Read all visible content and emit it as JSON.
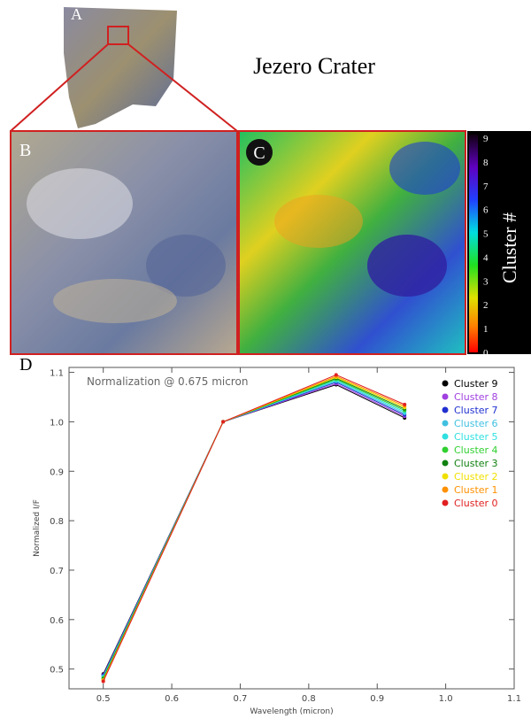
{
  "figure": {
    "title": "Jezero Crater",
    "panels": [
      "A",
      "B",
      "C",
      "D"
    ],
    "colorbar": {
      "label": "Cluster #",
      "ticks": [
        0,
        1,
        2,
        3,
        4,
        5,
        6,
        7,
        8,
        9
      ]
    }
  },
  "chart_data": {
    "type": "line",
    "annotation": "Normalization @ 0.675 micron",
    "x_label": "Wavelength (micron)",
    "y_label": "Normalized I/F",
    "x": [
      0.5,
      0.675,
      0.84,
      0.94
    ],
    "xlim": [
      0.45,
      1.1
    ],
    "ylim": [
      0.46,
      1.11
    ],
    "xticks": [
      0.5,
      0.6,
      0.7,
      0.8,
      0.9,
      {
        "value": 1,
        "label": "1.0"
      },
      1.1
    ],
    "yticks": [
      0.5,
      0.6,
      0.7,
      0.8,
      0.9,
      {
        "value": 1,
        "label": "1.0"
      },
      1.1
    ],
    "legend": "top-right",
    "series": [
      {
        "name": "Cluster 9",
        "color": "#000000",
        "values": [
          0.49,
          1.0,
          1.075,
          1.008
        ]
      },
      {
        "name": "Cluster 8",
        "color": "#a040e0",
        "values": [
          0.488,
          1.0,
          1.077,
          1.011
        ]
      },
      {
        "name": "Cluster 7",
        "color": "#2030d0",
        "values": [
          0.487,
          1.0,
          1.08,
          1.014
        ]
      },
      {
        "name": "Cluster 6",
        "color": "#40c0e0",
        "values": [
          0.485,
          1.0,
          1.082,
          1.017
        ]
      },
      {
        "name": "Cluster 5",
        "color": "#30e0e0",
        "values": [
          0.483,
          1.0,
          1.084,
          1.02
        ]
      },
      {
        "name": "Cluster 4",
        "color": "#30d030",
        "values": [
          0.482,
          1.0,
          1.086,
          1.023
        ]
      },
      {
        "name": "Cluster 3",
        "color": "#108010",
        "values": [
          0.48,
          1.0,
          1.088,
          1.026
        ]
      },
      {
        "name": "Cluster 2",
        "color": "#f0e000",
        "values": [
          0.478,
          1.0,
          1.09,
          1.029
        ]
      },
      {
        "name": "Cluster 1",
        "color": "#ff9000",
        "values": [
          0.477,
          1.0,
          1.092,
          1.032
        ]
      },
      {
        "name": "Cluster 0",
        "color": "#e02020",
        "values": [
          0.475,
          1.0,
          1.095,
          1.035
        ]
      }
    ]
  }
}
